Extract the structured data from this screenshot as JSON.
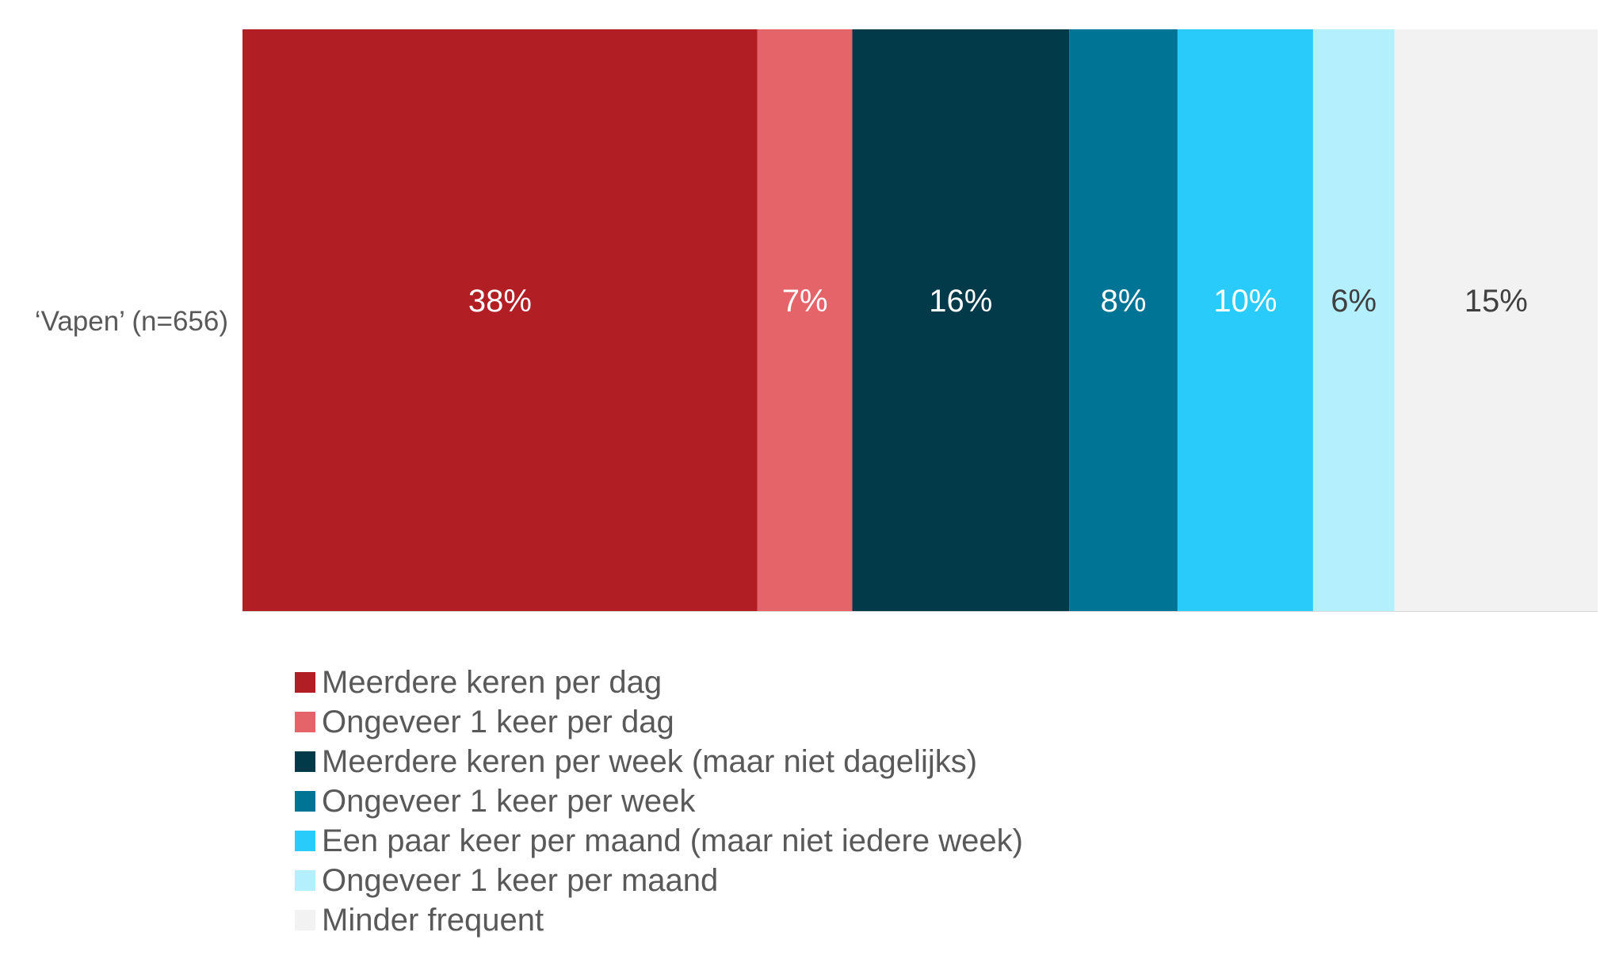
{
  "chart_data": {
    "type": "bar",
    "orientation": "horizontal",
    "stacked": true,
    "categories": [
      "‘Vapen’ (n=656)"
    ],
    "series": [
      {
        "name": "Meerdere keren per dag",
        "values": [
          38
        ],
        "label": "38%",
        "color": "#B11F24",
        "label_color": "#FFFFFF"
      },
      {
        "name": "Ongeveer 1 keer per dag",
        "values": [
          7
        ],
        "label": "7%",
        "color": "#E5646A",
        "label_color": "#FFFFFF"
      },
      {
        "name": "Meerdere keren per week (maar niet dagelijks)",
        "values": [
          16
        ],
        "label": "16%",
        "color": "#033A4A",
        "label_color": "#FFFFFF"
      },
      {
        "name": "Ongeveer 1 keer per week",
        "values": [
          8
        ],
        "label": "8%",
        "color": "#007495",
        "label_color": "#FFFFFF"
      },
      {
        "name": "Een paar keer per maand (maar niet iedere week)",
        "values": [
          10
        ],
        "label": "10%",
        "color": "#29CBFB",
        "label_color": "#FFFFFF"
      },
      {
        "name": "Ongeveer 1 keer per maand",
        "values": [
          6
        ],
        "label": "6%",
        "color": "#B4EFFE",
        "label_color": "#404040"
      },
      {
        "name": "Minder frequent",
        "values": [
          15
        ],
        "label": "15%",
        "color": "#F2F2F2",
        "label_color": "#404040"
      }
    ],
    "xlim": [
      0,
      100
    ],
    "legend_position": "bottom",
    "grid": false
  }
}
